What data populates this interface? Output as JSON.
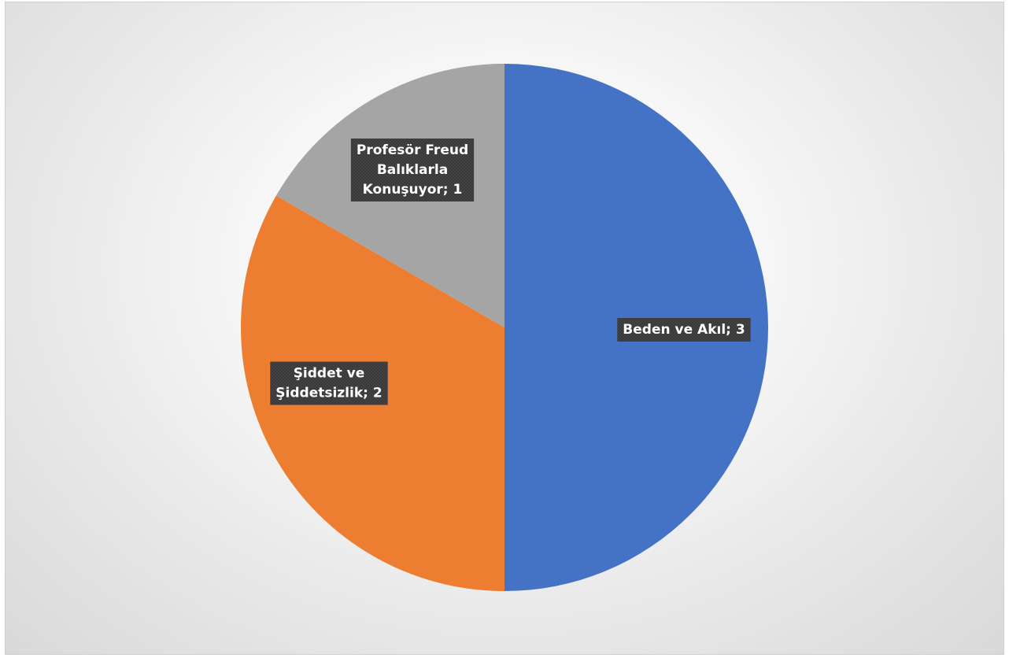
{
  "chart_data": {
    "type": "pie",
    "title": "",
    "categories": [
      "Beden ve Akıl",
      "Şiddet ve Şiddetsizlik",
      "Profesör Freud Balıklarla Konuşuyor"
    ],
    "values": [
      3,
      2,
      1
    ],
    "data_labels": [
      [
        "Beden ve Akıl; 3"
      ],
      [
        "Şiddet ve",
        "Şiddetsizlik; 2"
      ],
      [
        "Profesör Freud",
        "Balıklarla",
        "Konuşuyor; 1"
      ]
    ],
    "colors": [
      "#4472C4",
      "#ED7D31",
      "#A5A5A5"
    ],
    "start_angle_deg": 0,
    "direction": "clockwise",
    "legend": "none"
  }
}
